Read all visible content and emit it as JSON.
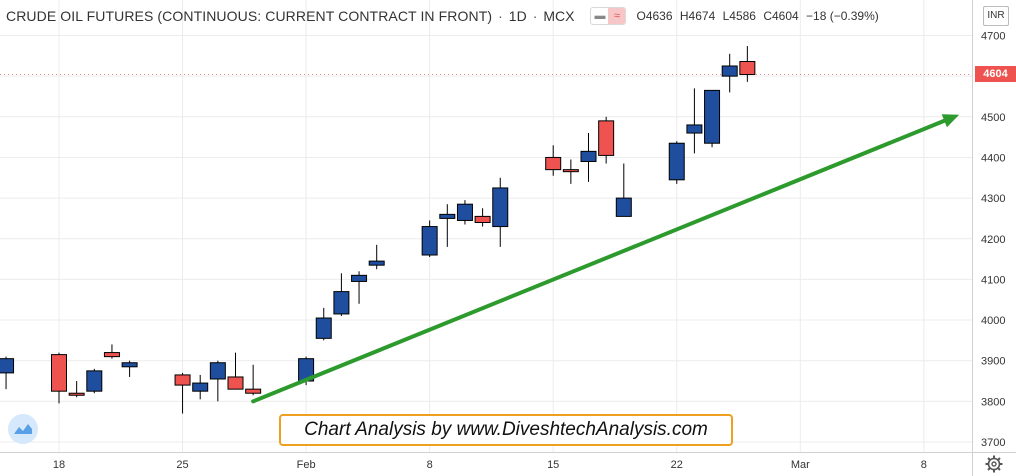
{
  "header": {
    "title": "CRUDE OIL FUTURES (CONTINUOUS: CURRENT CONTRACT IN FRONT)",
    "interval": "1D",
    "exchange": "MCX",
    "ohlc": {
      "open_label": "O",
      "open": "4636",
      "high_label": "H",
      "high": "4674",
      "low_label": "L",
      "low": "4586",
      "close_label": "C",
      "close": "4604",
      "change": "−18 (−0.39%)"
    }
  },
  "currency": "INR",
  "last_price": "4604",
  "annotation": "Chart Analysis by www.DiveshtechAnalysis.com",
  "icons": [
    "eye-icon",
    "wave-icon",
    "tradingview-logo-icon",
    "gear-icon"
  ],
  "colors": {
    "up": "#1f4e9e",
    "down": "#ef5350",
    "trend_arrow": "#2c9a2c",
    "grid": "#ececec",
    "annotation_border": "#f0a020"
  },
  "chart_data": {
    "type": "candlestick",
    "title": "CRUDE OIL FUTURES (CONTINUOUS: CURRENT CONTRACT IN FRONT)",
    "ylim": [
      3680,
      4725
    ],
    "y_ticks": [
      "3700",
      "3800",
      "3900",
      "4000",
      "4100",
      "4200",
      "4300",
      "4400",
      "4500",
      "4600",
      "4700"
    ],
    "x_ticks": [
      "18",
      "25",
      "Feb",
      "8",
      "15",
      "22",
      "Mar",
      "8"
    ],
    "grid": true,
    "candles": [
      {
        "date": "2021-01-15",
        "o": 3870,
        "h": 3910,
        "l": 3830,
        "c": 3905
      },
      {
        "date": "2021-01-18",
        "o": 3915,
        "h": 3920,
        "l": 3795,
        "c": 3825
      },
      {
        "date": "2021-01-19",
        "o": 3820,
        "h": 3850,
        "l": 3810,
        "c": 3815
      },
      {
        "date": "2021-01-20",
        "o": 3825,
        "h": 3880,
        "l": 3820,
        "c": 3875
      },
      {
        "date": "2021-01-21",
        "o": 3920,
        "h": 3940,
        "l": 3905,
        "c": 3910
      },
      {
        "date": "2021-01-22",
        "o": 3885,
        "h": 3900,
        "l": 3860,
        "c": 3895
      },
      {
        "date": "2021-01-25",
        "o": 3865,
        "h": 3870,
        "l": 3770,
        "c": 3840
      },
      {
        "date": "2021-01-26",
        "o": 3825,
        "h": 3865,
        "l": 3805,
        "c": 3845
      },
      {
        "date": "2021-01-27",
        "o": 3855,
        "h": 3900,
        "l": 3800,
        "c": 3895
      },
      {
        "date": "2021-01-28",
        "o": 3860,
        "h": 3920,
        "l": 3830,
        "c": 3830
      },
      {
        "date": "2021-01-29",
        "o": 3830,
        "h": 3890,
        "l": 3815,
        "c": 3820
      },
      {
        "date": "2021-02-01",
        "o": 3850,
        "h": 3910,
        "l": 3840,
        "c": 3905
      },
      {
        "date": "2021-02-02",
        "o": 3955,
        "h": 4030,
        "l": 3950,
        "c": 4005
      },
      {
        "date": "2021-02-03",
        "o": 4015,
        "h": 4115,
        "l": 4010,
        "c": 4070
      },
      {
        "date": "2021-02-04",
        "o": 4095,
        "h": 4120,
        "l": 4040,
        "c": 4110
      },
      {
        "date": "2021-02-05",
        "o": 4135,
        "h": 4185,
        "l": 4125,
        "c": 4145
      },
      {
        "date": "2021-02-08",
        "o": 4160,
        "h": 4245,
        "l": 4155,
        "c": 4230
      },
      {
        "date": "2021-02-09",
        "o": 4250,
        "h": 4285,
        "l": 4180,
        "c": 4260
      },
      {
        "date": "2021-02-10",
        "o": 4245,
        "h": 4295,
        "l": 4235,
        "c": 4285
      },
      {
        "date": "2021-02-11",
        "o": 4255,
        "h": 4275,
        "l": 4230,
        "c": 4240
      },
      {
        "date": "2021-02-12",
        "o": 4230,
        "h": 4350,
        "l": 4180,
        "c": 4325
      },
      {
        "date": "2021-02-15",
        "o": 4400,
        "h": 4430,
        "l": 4355,
        "c": 4370
      },
      {
        "date": "2021-02-16",
        "o": 4370,
        "h": 4395,
        "l": 4335,
        "c": 4365
      },
      {
        "date": "2021-02-17",
        "o": 4390,
        "h": 4460,
        "l": 4340,
        "c": 4415
      },
      {
        "date": "2021-02-18",
        "o": 4490,
        "h": 4500,
        "l": 4385,
        "c": 4405
      },
      {
        "date": "2021-02-19",
        "o": 4255,
        "h": 4385,
        "l": 4255,
        "c": 4300
      },
      {
        "date": "2021-02-22",
        "o": 4345,
        "h": 4440,
        "l": 4335,
        "c": 4435
      },
      {
        "date": "2021-02-23",
        "o": 4460,
        "h": 4570,
        "l": 4410,
        "c": 4480
      },
      {
        "date": "2021-02-24",
        "o": 4435,
        "h": 4565,
        "l": 4425,
        "c": 4565
      },
      {
        "date": "2021-02-25",
        "o": 4600,
        "h": 4655,
        "l": 4560,
        "c": 4625
      },
      {
        "date": "2021-02-26",
        "o": 4636,
        "h": 4674,
        "l": 4586,
        "c": 4604
      }
    ],
    "trend_arrow": {
      "from_date": "2021-01-29",
      "from_price": 3800,
      "to_date": "2021-03-10",
      "to_price": 4505
    }
  }
}
